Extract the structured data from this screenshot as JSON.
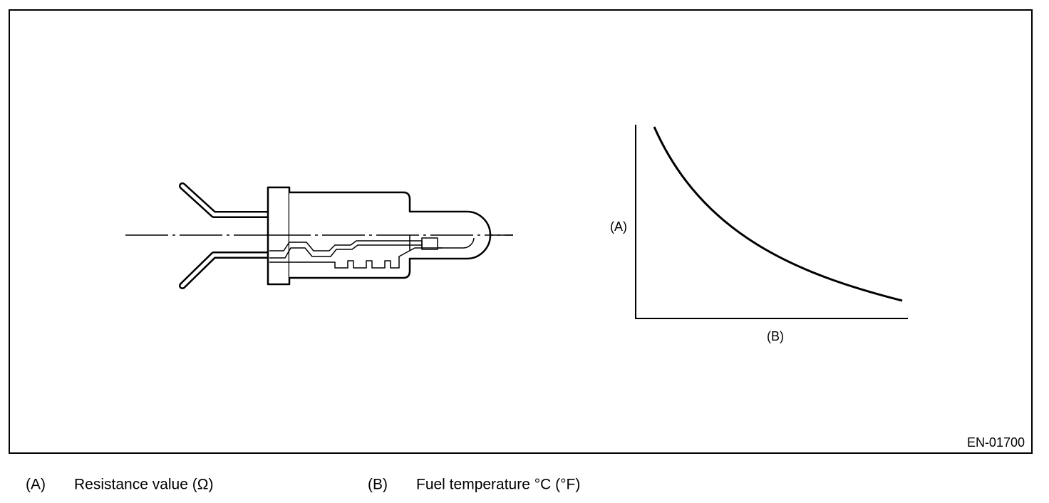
{
  "figure": {
    "id": "EN-01700",
    "graph": {
      "y_label": "(A)",
      "x_label": "(B)"
    }
  },
  "legend": [
    {
      "key": "(A)",
      "text": "Resistance value (Ω)"
    },
    {
      "key": "(B)",
      "text": "Fuel temperature °C (°F)"
    }
  ]
}
